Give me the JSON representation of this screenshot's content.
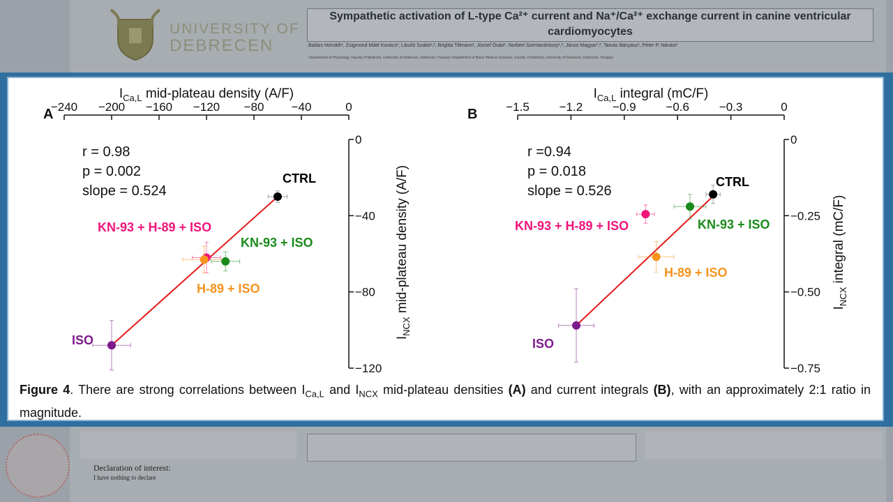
{
  "poster": {
    "university_line1": "UNIVERSITY OF",
    "university_line2": "DEBRECEN",
    "title": "Sympathetic activation of L-type Ca²⁺ current and Na⁺/Ca²⁺ exchange current in canine ventricular cardiomyocytes",
    "authors": "Balázs Horváth¹, Zsigmond Máté Kovács¹, László Szabó¹,², Brigitta Tillmann¹, József Óvári¹, Norbert Szentandrássy¹,², János Magyar¹,², Tamás Bányász¹, Péter P. Nánási¹",
    "affiliations": "¹Department of Physiology, Faculty of Medicine, University of Debrecen, Debrecen, Hungary  ²Department of Basic Medical Sciences, Faculty of Dentistry, University of Debrecen, Debrecen, Hungary",
    "declaration_title": "Declaration of interest:",
    "declaration_text": "I have nothing to declare"
  },
  "caption": {
    "figure_label": "Figure 4",
    "text_1": ". There are strong correlations between I",
    "sub_cal": "Ca,L",
    "text_2": " and I",
    "sub_ncx": "NCX",
    "text_3": " mid-plateau densities ",
    "bold_a": "(A)",
    "text_4": " and current integrals ",
    "bold_b": "(B)",
    "text_5": ", with an approximately 2:1 ratio in magnitude."
  },
  "chart_data": [
    {
      "type": "scatter",
      "panel_label": "A",
      "xlabel_main": "I",
      "xlabel_sub": "Ca,L",
      "xlabel_rest": " mid-plateau density (A/F)",
      "ylabel_main": "I",
      "ylabel_sub": "NCX",
      "ylabel_rest": " mid-plateau density (A/F)",
      "xlim": [
        -240,
        0
      ],
      "ylim": [
        -120,
        0
      ],
      "xticks": [
        -240,
        -200,
        -160,
        -120,
        -80,
        -40,
        0
      ],
      "yticks": [
        0,
        -40,
        -80,
        -120
      ],
      "x_axis_position": "top",
      "y_axis_position": "right",
      "stats": [
        "r = 0.98",
        "p = 0.002",
        "slope = 0.524"
      ],
      "points": [
        {
          "label": "CTRL",
          "x": -60,
          "y": -30,
          "xerr": 8,
          "yerr": 3,
          "color": "#000000"
        },
        {
          "label": "KN-93 + H-89 + ISO",
          "x": -120,
          "y": -62,
          "xerr": 12,
          "yerr": 8,
          "color": "#f0147a"
        },
        {
          "label": "H-89 + ISO",
          "x": -122,
          "y": -63,
          "xerr": 18,
          "yerr": 7,
          "color": "#f7931e"
        },
        {
          "label": "KN-93 + ISO",
          "x": -104,
          "y": -64,
          "xerr": 12,
          "yerr": 5,
          "color": "#1a8a1a"
        },
        {
          "label": "ISO",
          "x": -200,
          "y": -108,
          "xerr": 16,
          "yerr": 13,
          "color": "#7b1a8a"
        }
      ],
      "fit_line": {
        "x": [
          -200,
          -60
        ],
        "y": [
          -108,
          -30
        ],
        "color": "#e31a1a"
      }
    },
    {
      "type": "scatter",
      "panel_label": "B",
      "xlabel_main": "I",
      "xlabel_sub": "Ca,L",
      "xlabel_rest": " integral (mC/F)",
      "ylabel_main": "I",
      "ylabel_sub": "NCX",
      "ylabel_rest": " integral (mC/F)",
      "xlim": [
        -1.5,
        0
      ],
      "ylim": [
        -0.75,
        0
      ],
      "xticks": [
        -1.5,
        -1.2,
        -0.9,
        -0.6,
        -0.3,
        0
      ],
      "xtick_labels": [
        "−1.5",
        "−1.2",
        "−0.9",
        "−0.6",
        "−0.3",
        "0"
      ],
      "yticks": [
        0,
        -0.25,
        -0.5,
        -0.75
      ],
      "ytick_labels": [
        "0",
        "−0.25",
        "−0.50",
        "−0.75"
      ],
      "x_axis_position": "top",
      "y_axis_position": "right",
      "stats": [
        "r  =0.94",
        "p = 0.018",
        "slope = 0.526"
      ],
      "points": [
        {
          "label": "CTRL",
          "x": -0.4,
          "y": -0.18,
          "xerr": 0.04,
          "yerr": 0.03,
          "color": "#000000"
        },
        {
          "label": "KN-93 + H-89 + ISO",
          "x": -0.78,
          "y": -0.245,
          "xerr": 0.05,
          "yerr": 0.03,
          "color": "#f0147a"
        },
        {
          "label": "KN-93 + ISO",
          "x": -0.53,
          "y": -0.22,
          "xerr": 0.09,
          "yerr": 0.04,
          "color": "#1a8a1a"
        },
        {
          "label": "H-89 + ISO",
          "x": -0.72,
          "y": -0.385,
          "xerr": 0.1,
          "yerr": 0.05,
          "color": "#f7931e"
        },
        {
          "label": "ISO",
          "x": -1.17,
          "y": -0.61,
          "xerr": 0.1,
          "yerr": 0.12,
          "color": "#7b1a8a"
        }
      ],
      "fit_line": {
        "x": [
          -1.17,
          -0.38
        ],
        "y": [
          -0.61,
          -0.175
        ],
        "color": "#e31a1a"
      }
    }
  ]
}
